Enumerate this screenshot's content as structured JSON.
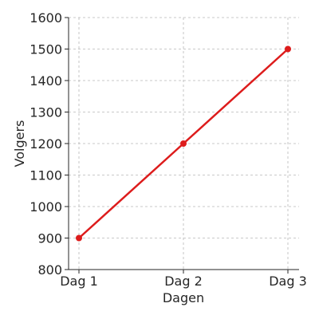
{
  "chart_data": {
    "type": "line",
    "categories": [
      "Dag 1",
      "Dag 2",
      "Dag 3"
    ],
    "series": [
      {
        "values": [
          900,
          1200,
          1500
        ],
        "color": "#dd1c1c"
      }
    ],
    "title": "",
    "xlabel": "Dagen",
    "ylabel": "Volgers",
    "ylim": [
      800,
      1600
    ],
    "yticks": [
      "800",
      "900",
      "1000",
      "1100",
      "1200",
      "1300",
      "1400",
      "1500",
      "1600"
    ],
    "grid": true,
    "legend": "none"
  }
}
